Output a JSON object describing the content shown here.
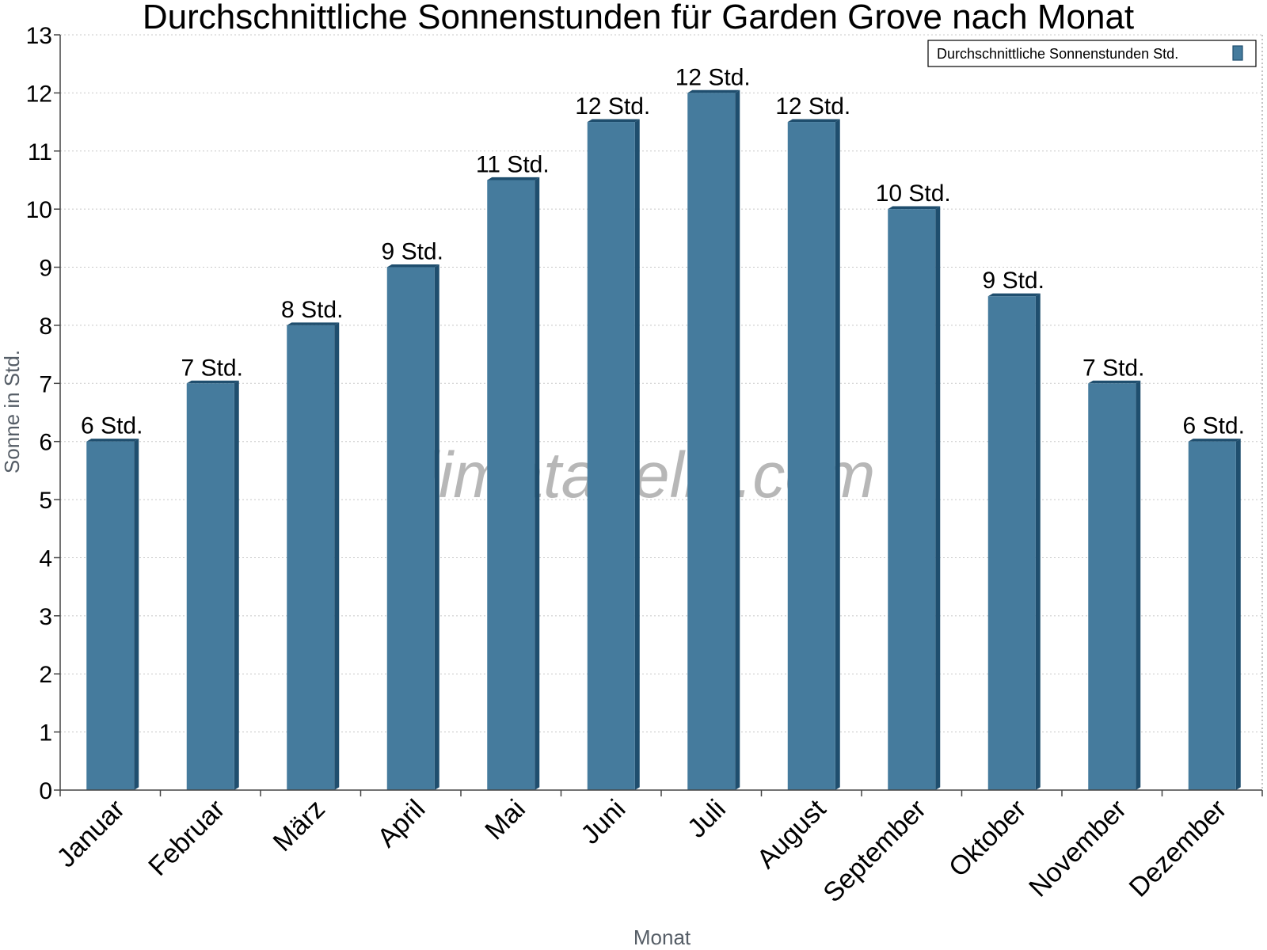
{
  "chart_data": {
    "type": "bar",
    "title": "Durchschnittliche Sonnenstunden für Garden Grove nach Monat",
    "xlabel": "Monat",
    "ylabel": "Sonne in Std.",
    "ylim": [
      0,
      13
    ],
    "yticks": [
      "0",
      "1",
      "2",
      "3",
      "4",
      "5",
      "6",
      "7",
      "8",
      "9",
      "10",
      "11",
      "12",
      "13"
    ],
    "grid": true,
    "legend_position": "top-right",
    "categories": [
      "Januar",
      "Februar",
      "März",
      "April",
      "Mai",
      "Juni",
      "Juli",
      "August",
      "September",
      "Oktober",
      "November",
      "Dezember"
    ],
    "series": [
      {
        "name": "Durchschnittliche Sonnenstunden Std.",
        "color": "#457b9d",
        "values": [
          6,
          7,
          8,
          9,
          10.5,
          11.5,
          12,
          11.5,
          10,
          8.5,
          7,
          6
        ],
        "labels": [
          "6 Std.",
          "7 Std.",
          "8 Std.",
          "9 Std.",
          "11 Std.",
          "12 Std.",
          "12 Std.",
          "12 Std.",
          "10 Std.",
          "9 Std.",
          "7 Std.",
          "6 Std."
        ]
      }
    ],
    "watermark": "klimatabelle.com"
  }
}
